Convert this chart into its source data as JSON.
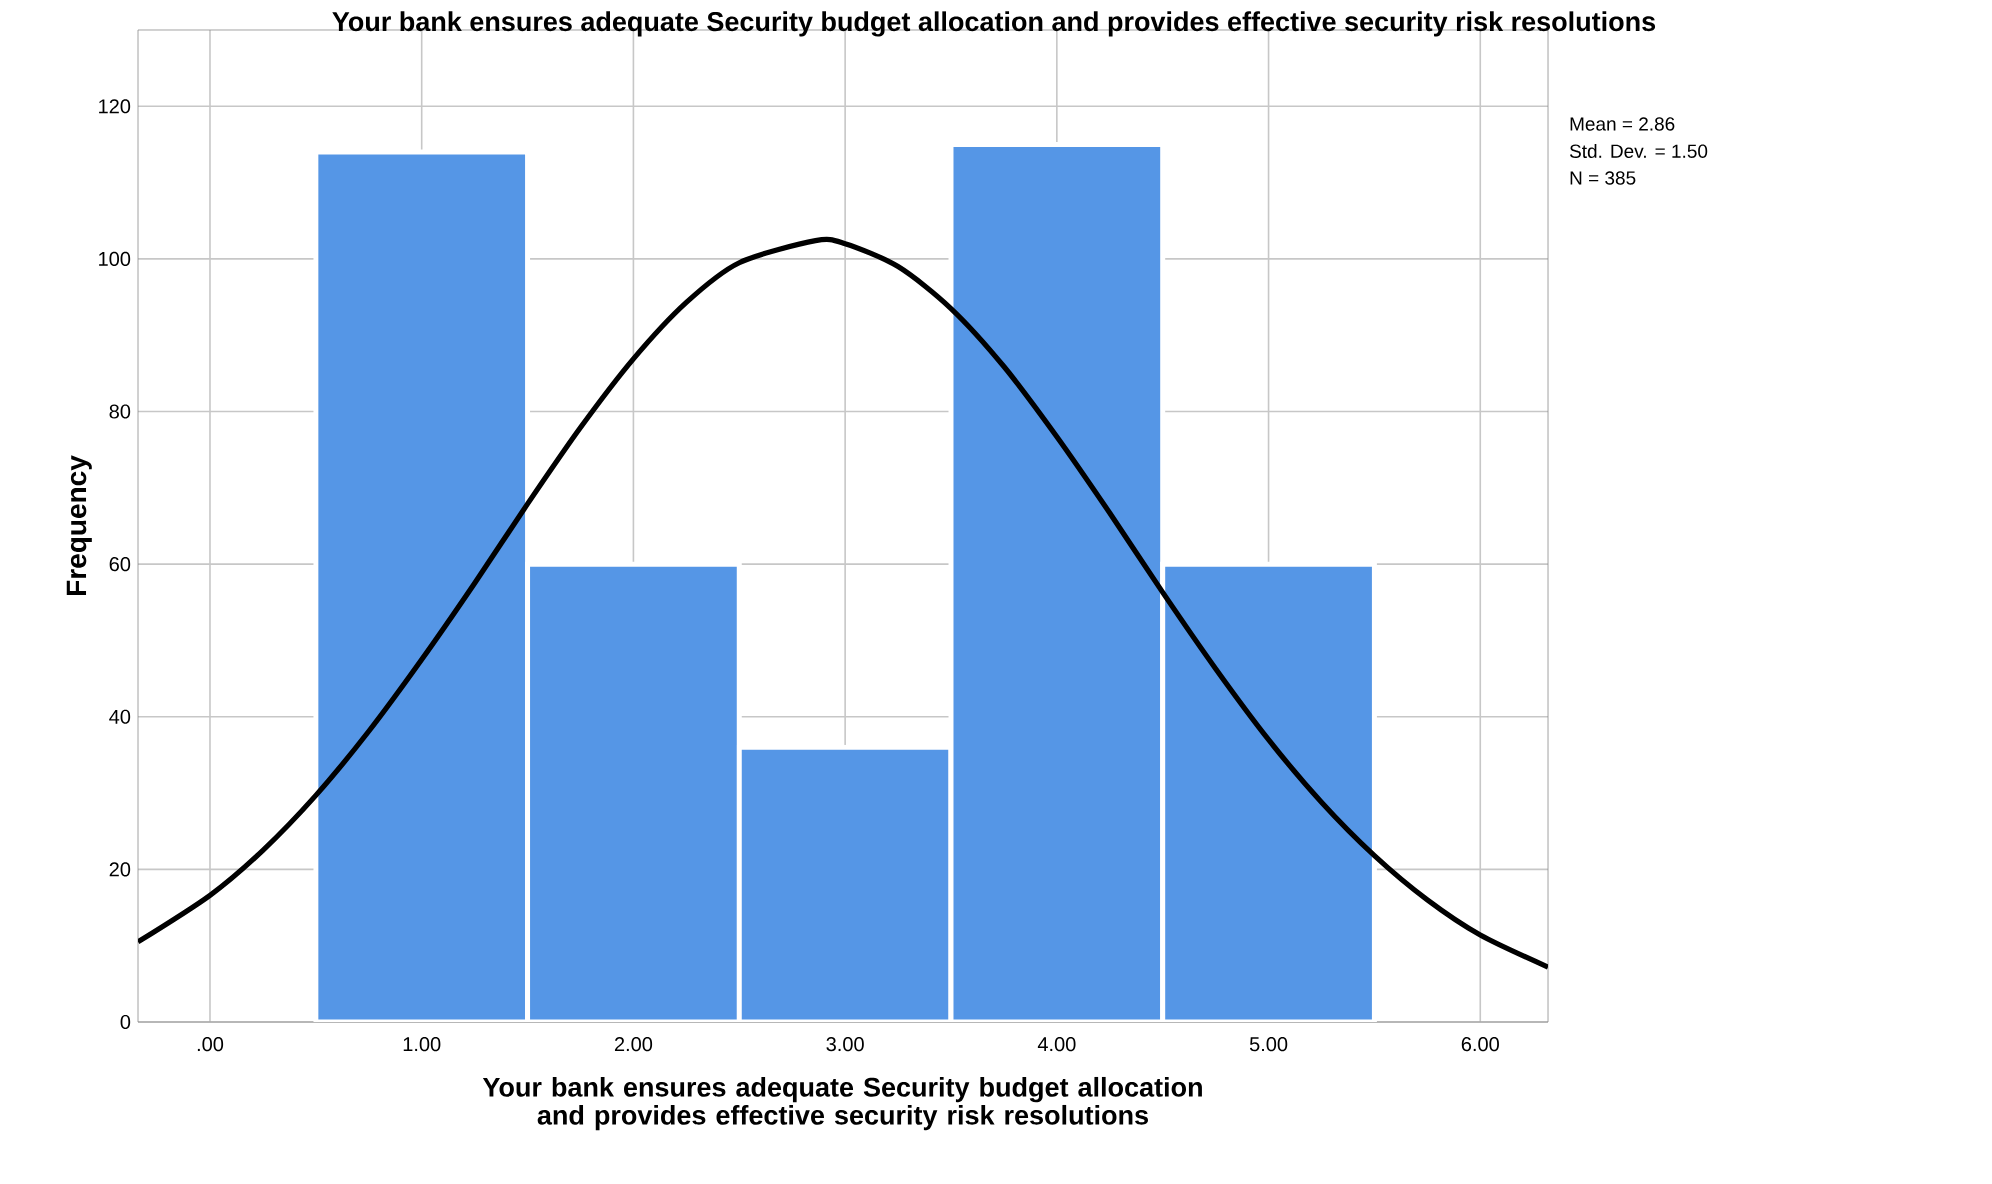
{
  "chart_data": {
    "type": "histogram",
    "title": "Your bank ensures adequate Security budget allocation and provides effective security risk resolutions",
    "xlabel": "Your bank ensures adequate Security budget allocation and provides effective security risk resolutions",
    "ylabel": "Frequency",
    "series": [
      {
        "type": "histogram",
        "bins": [
          0.5,
          1.5,
          2.5,
          3.5,
          4.5,
          5.5
        ],
        "values": [
          114,
          60,
          36,
          115,
          60
        ],
        "color": "#5596e6"
      },
      {
        "type": "line",
        "color": "#000000",
        "x": [
          -0.34,
          0,
          0.25,
          0.5,
          0.75,
          1,
          1.25,
          1.5,
          1.75,
          2,
          2.25,
          2.5,
          2.86,
          3,
          3.25,
          3.5,
          3.75,
          4,
          4.25,
          4.5,
          4.75,
          5,
          5.25,
          5.5,
          5.75,
          6,
          6.32
        ],
        "values": [
          10.5,
          16.6,
          22.5,
          29.7,
          38.1,
          47.5,
          57.5,
          67.9,
          77.9,
          86.9,
          94.3,
          99.5,
          102.4,
          102.0,
          99.0,
          93.5,
          85.9,
          76.7,
          66.7,
          56.3,
          46.3,
          37.0,
          28.8,
          21.8,
          16.0,
          11.4,
          7.2
        ]
      }
    ],
    "xlim": [
      -0.34,
      6.32
    ],
    "ylim": [
      0,
      130
    ],
    "xticks": [
      {
        "value": 0,
        "label": ".00"
      },
      {
        "value": 1,
        "label": "1.00"
      },
      {
        "value": 2,
        "label": "2.00"
      },
      {
        "value": 3,
        "label": "3.00"
      },
      {
        "value": 4,
        "label": "4.00"
      },
      {
        "value": 5,
        "label": "5.00"
      },
      {
        "value": 6,
        "label": "6.00"
      }
    ],
    "yticks": [
      0,
      20,
      40,
      60,
      80,
      100,
      120
    ],
    "grid": true,
    "annotations": [
      "Mean = 2.86",
      "Std. Dev. = 1.50",
      "N = 385"
    ]
  }
}
